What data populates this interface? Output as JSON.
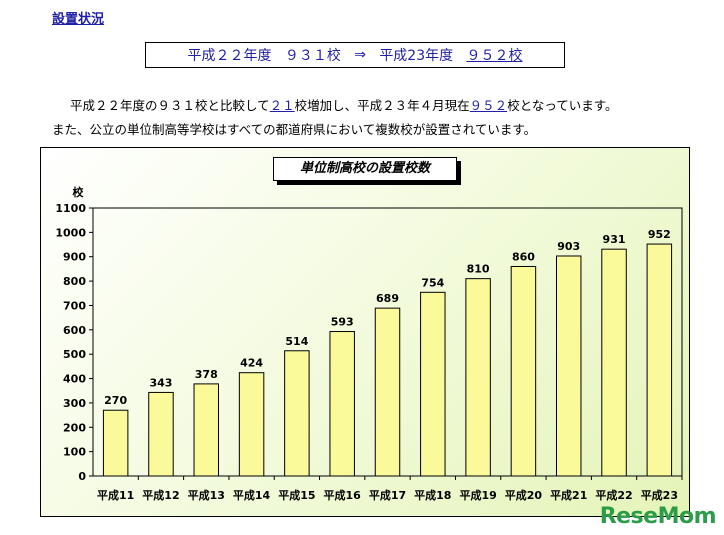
{
  "page": {
    "section_title": "設置状況",
    "summary": {
      "from_label": "平成２２年度",
      "from_value": "９３１校",
      "arrow": "⇒",
      "to_label": "平成23年度",
      "to_value": "９５２校"
    },
    "paragraph1": {
      "pre": "平成２２年度の９３１校と比較して",
      "increase": "２１",
      "mid": "校増加し、平成２３年４月現在",
      "current": "９５２",
      "post": "校となっています。"
    },
    "paragraph2": "また、公立の単位制高等学校はすべての都道府県において複数校が設置されています。",
    "logo": "ReseMom"
  },
  "colors": {
    "bar_fill": "#fafa9a",
    "bar_stroke": "#000000",
    "accent_text": "#1f1fa8",
    "panel_gradient_end": "#e4f4b8"
  },
  "chart_data": {
    "type": "bar",
    "title": "単位制高校の設置校数",
    "ylabel": "校",
    "xlabel": "",
    "categories": [
      "平成11",
      "平成12",
      "平成13",
      "平成14",
      "平成15",
      "平成16",
      "平成17",
      "平成18",
      "平成19",
      "平成20",
      "平成21",
      "平成22",
      "平成23"
    ],
    "values": [
      270,
      343,
      378,
      424,
      514,
      593,
      689,
      754,
      810,
      860,
      903,
      931,
      952
    ],
    "data_labels": [
      "270",
      "343",
      "378",
      "424",
      "514",
      "593",
      "689",
      "754",
      "810",
      "860",
      "903",
      "931",
      "952"
    ],
    "ylim": [
      0,
      1100
    ],
    "yticks": [
      0,
      100,
      200,
      300,
      400,
      500,
      600,
      700,
      800,
      900,
      1000,
      1100
    ],
    "grid": false,
    "legend": "none"
  }
}
